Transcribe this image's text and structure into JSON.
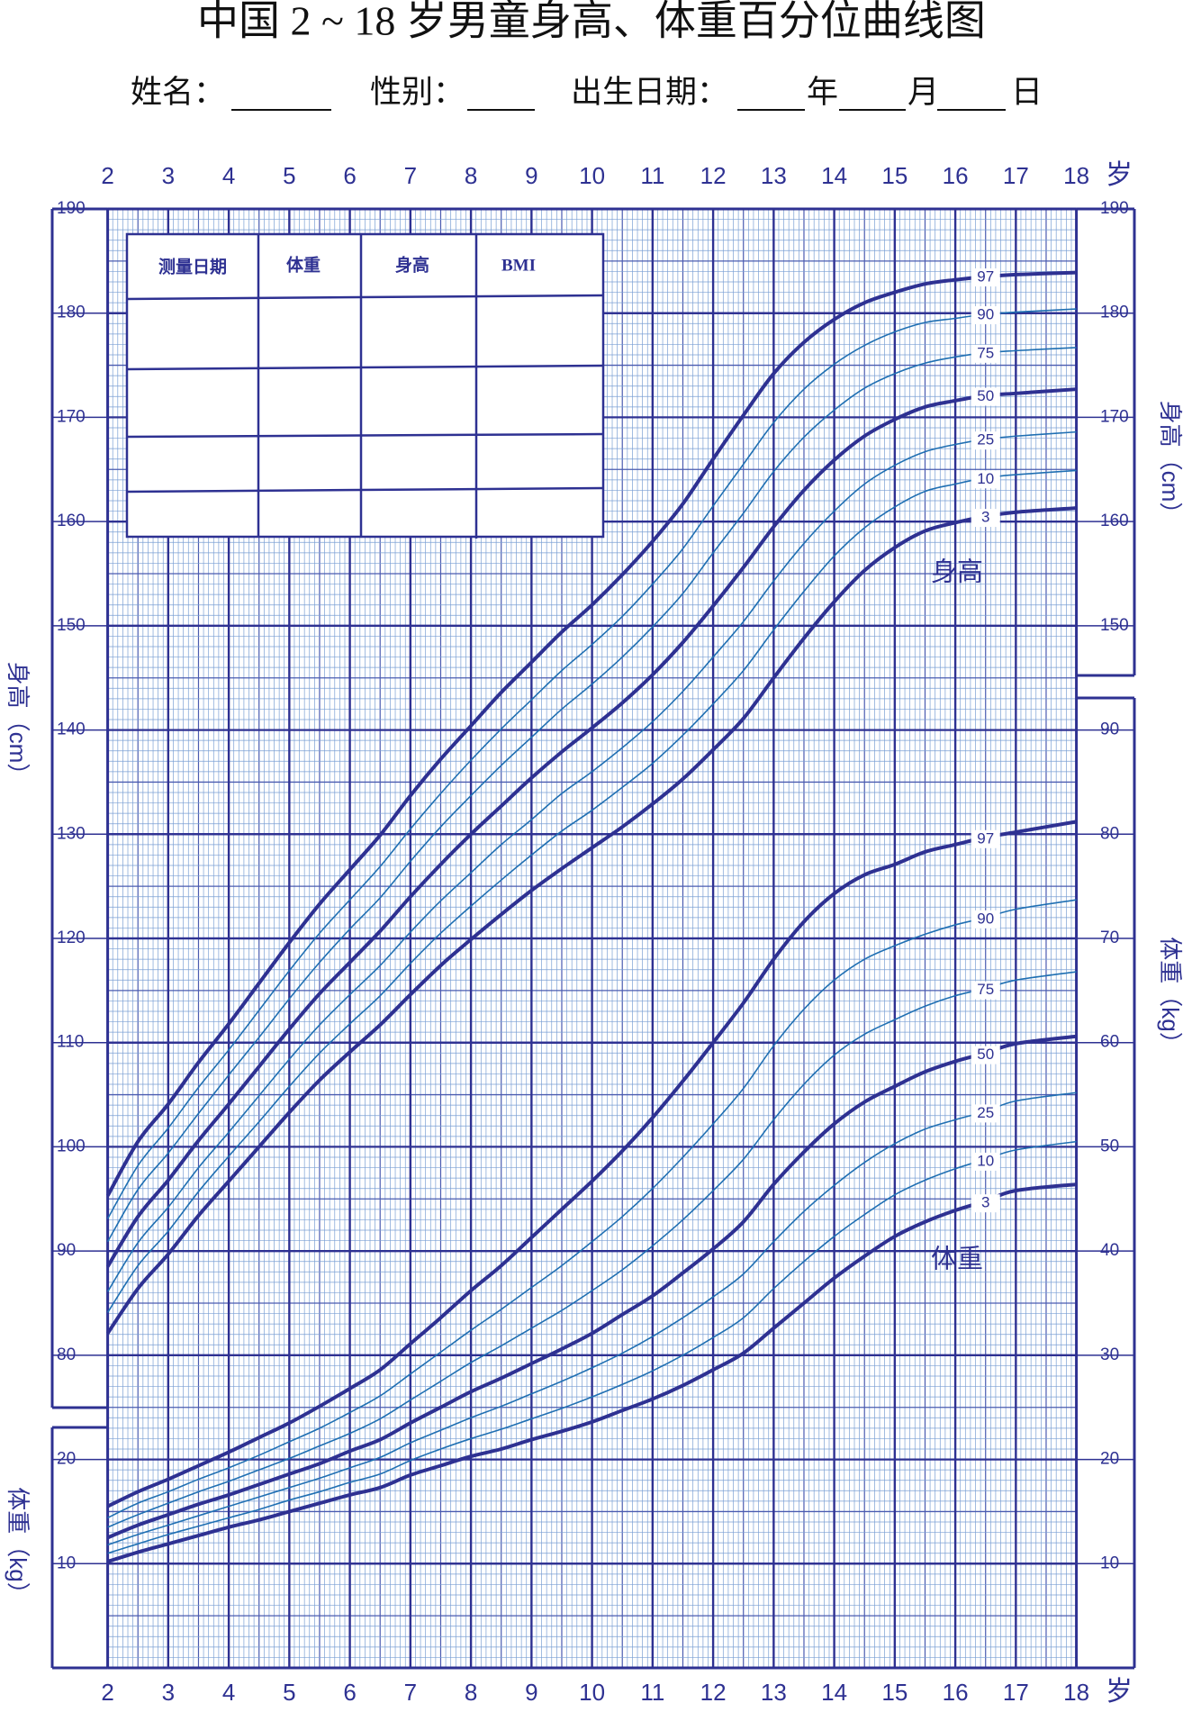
{
  "chart_data": {
    "type": "line",
    "title": "中国 2 ~ 18 岁男童身高、体重百分位曲线图",
    "form": [
      "姓名：",
      "性别：",
      "出生日期：",
      "年",
      "月",
      "日"
    ],
    "table": {
      "header": [
        "测量日期",
        "体重",
        "身高",
        "BMI"
      ]
    },
    "x_label": "岁",
    "y_label": "身高（cm）",
    "y2_label": "体重（kg）",
    "annotations": [
      "身高",
      "体重"
    ],
    "xlim": [
      2,
      18
    ],
    "xticks": [
      2,
      3,
      4,
      5,
      6,
      7,
      8,
      9,
      10,
      11,
      12,
      13,
      14,
      15,
      16,
      17,
      18
    ],
    "ylim": [
      50,
      190
    ],
    "yticks": [
      80,
      90,
      100,
      110,
      120,
      130,
      140,
      150,
      160,
      170,
      180,
      190
    ],
    "yticks_right": [
      150,
      160,
      170,
      180,
      190
    ],
    "y2lim": [
      0,
      140
    ],
    "y2ticks": [
      10,
      20,
      30,
      40,
      50,
      60,
      70,
      80,
      90
    ],
    "y2ticks_left": [
      10,
      20
    ],
    "grid": true,
    "x": [
      2,
      2.5,
      3,
      3.5,
      4,
      4.5,
      5,
      5.5,
      6,
      6.5,
      7,
      7.5,
      8,
      8.5,
      9,
      9.5,
      10,
      10.5,
      11,
      11.5,
      12,
      12.5,
      13,
      13.5,
      14,
      14.5,
      15,
      15.5,
      16,
      16.5,
      17,
      18
    ],
    "series": [
      {
        "name": "3",
        "color": "#2e3192",
        "values": [
          82.1,
          86.4,
          89.7,
          93.4,
          96.7,
          100.0,
          103.3,
          106.4,
          109.1,
          111.7,
          114.6,
          117.4,
          119.9,
          122.3,
          124.6,
          126.7,
          128.7,
          130.7,
          132.9,
          135.3,
          138.1,
          141.1,
          145.0,
          148.8,
          152.3,
          155.3,
          157.5,
          159.1,
          159.9,
          160.5,
          160.9,
          161.3
        ]
      },
      {
        "name": "10",
        "color": "#1f6fb2",
        "values": [
          84.1,
          88.6,
          91.9,
          95.7,
          99.1,
          102.4,
          105.8,
          109.0,
          111.8,
          114.5,
          117.6,
          120.5,
          123.1,
          125.6,
          128.0,
          130.3,
          132.3,
          134.5,
          136.8,
          139.5,
          142.5,
          145.7,
          149.6,
          153.3,
          156.7,
          159.4,
          161.4,
          162.9,
          163.6,
          164.2,
          164.5,
          164.9
        ]
      },
      {
        "name": "25",
        "color": "#1f6fb2",
        "values": [
          86.1,
          90.8,
          94.2,
          98.0,
          101.4,
          104.9,
          108.4,
          111.7,
          114.6,
          117.4,
          120.6,
          123.6,
          126.3,
          129.0,
          131.4,
          133.9,
          136.0,
          138.3,
          140.8,
          143.7,
          147.0,
          150.4,
          154.3,
          157.9,
          161.0,
          163.6,
          165.4,
          166.7,
          167.4,
          167.9,
          168.2,
          168.6
        ]
      },
      {
        "name": "50",
        "color": "#2e3192",
        "values": [
          88.5,
          93.3,
          96.8,
          100.6,
          104.1,
          107.7,
          111.3,
          114.7,
          117.7,
          120.7,
          124.0,
          127.1,
          130.0,
          132.7,
          135.4,
          137.9,
          140.2,
          142.6,
          145.3,
          148.4,
          151.9,
          155.6,
          159.5,
          163.0,
          165.9,
          168.2,
          169.8,
          171.0,
          171.6,
          172.1,
          172.3,
          172.7
        ]
      },
      {
        "name": "75",
        "color": "#1f6fb2",
        "values": [
          90.9,
          95.9,
          99.4,
          103.2,
          106.9,
          110.5,
          114.2,
          117.7,
          120.9,
          123.9,
          127.4,
          130.7,
          133.7,
          136.6,
          139.3,
          142.0,
          144.4,
          147.0,
          149.9,
          153.1,
          157.0,
          160.8,
          164.8,
          168.1,
          170.7,
          172.8,
          174.2,
          175.2,
          175.8,
          176.2,
          176.4,
          176.7
        ]
      },
      {
        "name": "90",
        "color": "#1f6fb2",
        "values": [
          93.1,
          98.2,
          101.8,
          105.7,
          109.3,
          113.1,
          116.9,
          120.5,
          123.7,
          126.9,
          130.5,
          133.9,
          137.1,
          140.1,
          142.9,
          145.7,
          148.2,
          150.9,
          154.0,
          157.4,
          161.5,
          165.5,
          169.5,
          172.7,
          175.1,
          176.9,
          178.2,
          179.1,
          179.5,
          179.9,
          180.1,
          180.4
        ]
      },
      {
        "name": "97",
        "color": "#2e3192",
        "values": [
          95.3,
          100.5,
          104.1,
          108.1,
          111.8,
          115.7,
          119.6,
          123.3,
          126.6,
          129.9,
          133.7,
          137.2,
          140.4,
          143.6,
          146.5,
          149.4,
          152.0,
          154.9,
          158.1,
          161.7,
          166.0,
          170.2,
          174.2,
          177.2,
          179.4,
          181.0,
          182.0,
          182.8,
          183.2,
          183.5,
          183.7,
          183.9
        ]
      },
      {
        "name": "3",
        "color": "#2e3192",
        "axis": "y2",
        "values": [
          10.2,
          11.1,
          11.9,
          12.7,
          13.5,
          14.2,
          15.0,
          15.8,
          16.6,
          17.3,
          18.5,
          19.4,
          20.3,
          21.0,
          21.9,
          22.7,
          23.6,
          24.7,
          25.8,
          27.1,
          28.6,
          30.2,
          32.6,
          35.0,
          37.4,
          39.5,
          41.4,
          42.8,
          43.9,
          44.8,
          45.8,
          46.4
        ]
      },
      {
        "name": "10",
        "color": "#1f6fb2",
        "axis": "y2",
        "values": [
          11.0,
          11.9,
          12.8,
          13.6,
          14.4,
          15.2,
          16.1,
          16.9,
          17.8,
          18.6,
          19.9,
          21.0,
          22.0,
          22.9,
          23.9,
          24.9,
          26.0,
          27.2,
          28.5,
          30.0,
          31.7,
          33.6,
          36.4,
          39.0,
          41.4,
          43.5,
          45.4,
          46.8,
          47.9,
          48.8,
          49.7,
          50.5
        ]
      },
      {
        "name": "25",
        "color": "#1f6fb2",
        "axis": "y2",
        "values": [
          11.8,
          12.8,
          13.7,
          14.6,
          15.5,
          16.4,
          17.3,
          18.2,
          19.2,
          20.2,
          21.6,
          22.8,
          24.0,
          25.1,
          26.3,
          27.5,
          28.8,
          30.2,
          31.8,
          33.6,
          35.6,
          37.8,
          40.9,
          43.8,
          46.3,
          48.5,
          50.3,
          51.7,
          52.6,
          53.4,
          54.4,
          55.2
        ]
      },
      {
        "name": "50",
        "color": "#2e3192",
        "axis": "y2",
        "values": [
          12.5,
          13.7,
          14.7,
          15.7,
          16.6,
          17.6,
          18.6,
          19.6,
          20.8,
          21.9,
          23.5,
          25.0,
          26.5,
          27.8,
          29.2,
          30.6,
          32.1,
          33.9,
          35.7,
          37.9,
          40.2,
          42.8,
          46.4,
          49.5,
          52.2,
          54.3,
          55.8,
          57.2,
          58.2,
          59.0,
          59.9,
          60.6
        ]
      },
      {
        "name": "75",
        "color": "#1f6fb2",
        "axis": "y2",
        "values": [
          13.5,
          14.7,
          15.8,
          16.9,
          17.9,
          19.0,
          20.1,
          21.3,
          22.5,
          23.9,
          25.7,
          27.5,
          29.3,
          30.9,
          32.6,
          34.3,
          36.2,
          38.2,
          40.5,
          43.0,
          45.8,
          48.8,
          52.6,
          56.0,
          58.8,
          60.8,
          62.2,
          63.5,
          64.5,
          65.2,
          66.0,
          66.8
        ]
      },
      {
        "name": "90",
        "color": "#1f6fb2",
        "axis": "y2",
        "values": [
          14.4,
          15.8,
          16.9,
          18.1,
          19.2,
          20.4,
          21.7,
          23.0,
          24.5,
          26.1,
          28.2,
          30.3,
          32.4,
          34.4,
          36.5,
          38.6,
          40.9,
          43.3,
          46.0,
          49.0,
          52.2,
          55.6,
          59.7,
          63.2,
          66.0,
          68.0,
          69.3,
          70.4,
          71.3,
          72.0,
          72.8,
          73.7
        ]
      },
      {
        "name": "97",
        "color": "#2e3192",
        "axis": "y2",
        "values": [
          15.5,
          16.9,
          18.1,
          19.4,
          20.7,
          22.1,
          23.5,
          25.1,
          26.8,
          28.6,
          31.1,
          33.6,
          36.2,
          38.6,
          41.3,
          44.0,
          46.7,
          49.6,
          52.8,
          56.3,
          60.0,
          63.8,
          68.0,
          71.6,
          74.3,
          76.1,
          77.1,
          78.3,
          79.0,
          79.7,
          80.2,
          81.2
        ]
      }
    ]
  }
}
